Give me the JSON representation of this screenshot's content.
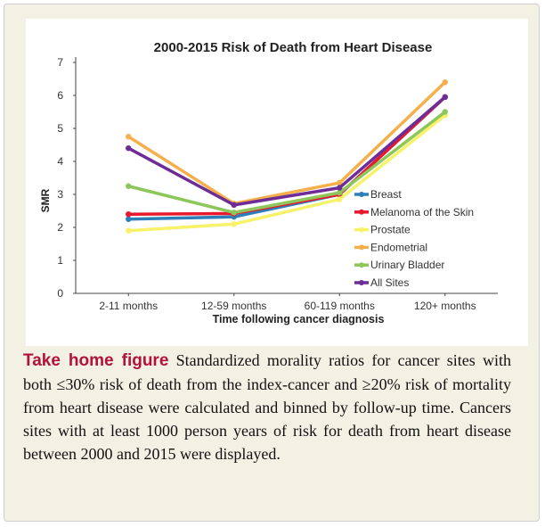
{
  "caption": {
    "lead": "Take home figure",
    "text": "Standardized morality ratios for cancer sites with both ≤30% risk of death from the index-cancer and ≥20% risk of mortality from heart disease were calculated and binned by follow-up time. Cancers sites with at least 1000 person years of risk for death from heart disease between 2000 and 2015 were displayed."
  },
  "chart_data": {
    "type": "line",
    "title": "2000-2015 Risk of Death from Heart Disease",
    "xlabel": "Time following cancer diagnosis",
    "ylabel": "SMR",
    "categories": [
      "2-11 months",
      "12-59 months",
      "60-119 months",
      "120+ months"
    ],
    "ylim": [
      0,
      7
    ],
    "yticks": [
      "0",
      "1",
      "2",
      "3",
      "4",
      "5",
      "6",
      "7"
    ],
    "grid": false,
    "legend_position": "right",
    "series": [
      {
        "name": "Breast",
        "color": "#2c7fb8",
        "values": [
          2.25,
          2.32,
          3.0,
          5.95
        ]
      },
      {
        "name": "Melanoma of the Skin",
        "color": "#e8192c",
        "values": [
          2.4,
          2.42,
          3.0,
          5.95
        ]
      },
      {
        "name": "Prostate",
        "color": "#f7f26a",
        "values": [
          1.9,
          2.1,
          2.85,
          5.4
        ]
      },
      {
        "name": "Endometrial",
        "color": "#f5b04b",
        "values": [
          4.75,
          2.72,
          3.35,
          6.4
        ]
      },
      {
        "name": "Urinary Bladder",
        "color": "#8dc65a",
        "values": [
          3.25,
          2.45,
          3.05,
          5.5
        ]
      },
      {
        "name": "All Sites",
        "color": "#6e2c96",
        "values": [
          4.4,
          2.68,
          3.2,
          5.95
        ]
      }
    ]
  }
}
